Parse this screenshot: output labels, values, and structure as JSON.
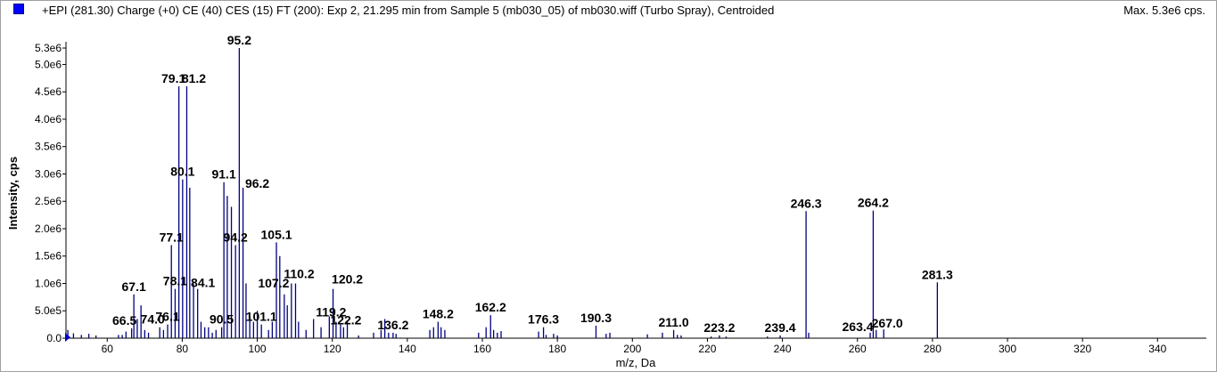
{
  "header": {
    "title": "+EPI (281.30) Charge (+0) CE (40) CES (15) FT (200): Exp 2, 21.295 min from Sample 5 (mb030_05) of mb030.wiff (Turbo Spray), Centroided",
    "max_label": "Max. 5.3e6 cps."
  },
  "colors": {
    "accent": "#000080",
    "swatch": "#0000ff"
  },
  "chart_data": {
    "type": "bar",
    "title": "+EPI (281.30) Charge (+0) CE (40) CES (15) FT (200): Exp 2, 21.295 min from Sample 5 (mb030_05) of mb030.wiff (Turbo Spray), Centroided",
    "xlabel": "m/z, Da",
    "ylabel": "Intensity, cps",
    "xlim": [
      49,
      353
    ],
    "ylim": [
      0,
      5300000.0
    ],
    "x_ticks": [
      60,
      80,
      100,
      120,
      140,
      160,
      180,
      200,
      220,
      240,
      260,
      280,
      300,
      320,
      340
    ],
    "y_ticks": [
      {
        "v": 0,
        "t": "0.0"
      },
      {
        "v": 500000,
        "t": "5.0e5"
      },
      {
        "v": 1000000,
        "t": "1.0e6"
      },
      {
        "v": 1500000,
        "t": "1.5e6"
      },
      {
        "v": 2000000,
        "t": "2.0e6"
      },
      {
        "v": 2500000,
        "t": "2.5e6"
      },
      {
        "v": 3000000,
        "t": "3.0e6"
      },
      {
        "v": 3500000,
        "t": "3.5e6"
      },
      {
        "v": 4000000,
        "t": "4.0e6"
      },
      {
        "v": 4500000,
        "t": "4.5e6"
      },
      {
        "v": 5000000,
        "t": "5.0e6"
      },
      {
        "v": 5300000,
        "t": "5.3e6"
      }
    ],
    "grid": false,
    "peaks": [
      {
        "x": 49.5,
        "y": 150000
      },
      {
        "x": 51.0,
        "y": 90000
      },
      {
        "x": 53.1,
        "y": 60000
      },
      {
        "x": 55.1,
        "y": 80000
      },
      {
        "x": 57.0,
        "y": 50000
      },
      {
        "x": 63.0,
        "y": 60000
      },
      {
        "x": 64.0,
        "y": 60000
      },
      {
        "x": 65.0,
        "y": 120000
      },
      {
        "x": 66.5,
        "y": 180000
      },
      {
        "x": 67.1,
        "y": 800000
      },
      {
        "x": 68.0,
        "y": 350000
      },
      {
        "x": 69.0,
        "y": 600000
      },
      {
        "x": 70.0,
        "y": 150000
      },
      {
        "x": 71.0,
        "y": 100000
      },
      {
        "x": 74.0,
        "y": 200000
      },
      {
        "x": 75.0,
        "y": 150000
      },
      {
        "x": 76.1,
        "y": 250000
      },
      {
        "x": 77.1,
        "y": 1700000
      },
      {
        "x": 78.1,
        "y": 900000
      },
      {
        "x": 79.1,
        "y": 4600000
      },
      {
        "x": 80.1,
        "y": 2900000
      },
      {
        "x": 81.2,
        "y": 4600000
      },
      {
        "x": 82.0,
        "y": 2750000
      },
      {
        "x": 83.0,
        "y": 1000000
      },
      {
        "x": 84.1,
        "y": 900000
      },
      {
        "x": 85.0,
        "y": 300000
      },
      {
        "x": 86.0,
        "y": 200000
      },
      {
        "x": 87.0,
        "y": 200000
      },
      {
        "x": 88.0,
        "y": 100000
      },
      {
        "x": 89.0,
        "y": 150000
      },
      {
        "x": 90.5,
        "y": 200000
      },
      {
        "x": 91.1,
        "y": 2850000
      },
      {
        "x": 92.0,
        "y": 2600000
      },
      {
        "x": 93.1,
        "y": 2400000
      },
      {
        "x": 94.2,
        "y": 1700000
      },
      {
        "x": 95.2,
        "y": 5300000
      },
      {
        "x": 96.2,
        "y": 2750000
      },
      {
        "x": 97.0,
        "y": 1000000
      },
      {
        "x": 98.0,
        "y": 400000
      },
      {
        "x": 99.0,
        "y": 300000
      },
      {
        "x": 100.0,
        "y": 500000
      },
      {
        "x": 101.1,
        "y": 250000
      },
      {
        "x": 103.0,
        "y": 150000
      },
      {
        "x": 104.0,
        "y": 300000
      },
      {
        "x": 105.1,
        "y": 1750000
      },
      {
        "x": 106.0,
        "y": 1500000
      },
      {
        "x": 107.2,
        "y": 800000
      },
      {
        "x": 108.0,
        "y": 600000
      },
      {
        "x": 109.1,
        "y": 1000000
      },
      {
        "x": 110.2,
        "y": 1000000
      },
      {
        "x": 111.0,
        "y": 300000
      },
      {
        "x": 113.0,
        "y": 150000
      },
      {
        "x": 115.0,
        "y": 350000
      },
      {
        "x": 117.0,
        "y": 200000
      },
      {
        "x": 119.2,
        "y": 400000
      },
      {
        "x": 120.2,
        "y": 900000
      },
      {
        "x": 121.0,
        "y": 300000
      },
      {
        "x": 122.2,
        "y": 250000
      },
      {
        "x": 123.0,
        "y": 200000
      },
      {
        "x": 124.0,
        "y": 300000
      },
      {
        "x": 127.0,
        "y": 50000
      },
      {
        "x": 131.0,
        "y": 100000
      },
      {
        "x": 133.0,
        "y": 150000
      },
      {
        "x": 134.0,
        "y": 350000
      },
      {
        "x": 135.0,
        "y": 100000
      },
      {
        "x": 136.2,
        "y": 100000
      },
      {
        "x": 137.0,
        "y": 80000
      },
      {
        "x": 146.0,
        "y": 150000
      },
      {
        "x": 147.0,
        "y": 200000
      },
      {
        "x": 148.2,
        "y": 300000
      },
      {
        "x": 149.0,
        "y": 200000
      },
      {
        "x": 150.0,
        "y": 150000
      },
      {
        "x": 159.0,
        "y": 100000
      },
      {
        "x": 161.0,
        "y": 200000
      },
      {
        "x": 162.2,
        "y": 420000
      },
      {
        "x": 163.0,
        "y": 150000
      },
      {
        "x": 164.0,
        "y": 100000
      },
      {
        "x": 165.0,
        "y": 130000
      },
      {
        "x": 175.0,
        "y": 120000
      },
      {
        "x": 176.3,
        "y": 200000
      },
      {
        "x": 177.0,
        "y": 60000
      },
      {
        "x": 179.0,
        "y": 80000
      },
      {
        "x": 180.0,
        "y": 50000
      },
      {
        "x": 190.3,
        "y": 230000
      },
      {
        "x": 193.0,
        "y": 80000
      },
      {
        "x": 194.0,
        "y": 100000
      },
      {
        "x": 204.0,
        "y": 70000
      },
      {
        "x": 208.0,
        "y": 100000
      },
      {
        "x": 211.0,
        "y": 150000
      },
      {
        "x": 212.0,
        "y": 60000
      },
      {
        "x": 213.0,
        "y": 50000
      },
      {
        "x": 221.0,
        "y": 30000
      },
      {
        "x": 223.2,
        "y": 50000
      },
      {
        "x": 225.0,
        "y": 30000
      },
      {
        "x": 236.0,
        "y": 30000
      },
      {
        "x": 239.4,
        "y": 50000
      },
      {
        "x": 246.3,
        "y": 2320000
      },
      {
        "x": 247.0,
        "y": 100000
      },
      {
        "x": 263.4,
        "y": 100000
      },
      {
        "x": 264.2,
        "y": 2330000
      },
      {
        "x": 265.0,
        "y": 150000
      },
      {
        "x": 267.0,
        "y": 160000
      },
      {
        "x": 281.3,
        "y": 1020000
      }
    ],
    "annotations": [
      {
        "x": 67.1,
        "y": 800000,
        "label": "67.1"
      },
      {
        "x": 66.5,
        "y": 180000,
        "label": "66.5"
      },
      {
        "x": 74.0,
        "y": 200000,
        "label": "74.0"
      },
      {
        "x": 76.1,
        "y": 250000,
        "label": "76.1"
      },
      {
        "x": 77.1,
        "y": 1700000,
        "label": "77.1"
      },
      {
        "x": 78.1,
        "y": 900000,
        "label": "78.1"
      },
      {
        "x": 79.1,
        "y": 4600000,
        "label": "79.1"
      },
      {
        "x": 80.1,
        "y": 2900000,
        "label": "80.1"
      },
      {
        "x": 81.2,
        "y": 4600000,
        "label": "81.2"
      },
      {
        "x": 84.1,
        "y": 900000,
        "label": "84.1"
      },
      {
        "x": 90.5,
        "y": 200000,
        "label": "90.5"
      },
      {
        "x": 91.1,
        "y": 2850000,
        "label": "91.1"
      },
      {
        "x": 94.2,
        "y": 1700000,
        "label": "94.2"
      },
      {
        "x": 95.2,
        "y": 5300000,
        "label": "95.2"
      },
      {
        "x": 96.2,
        "y": 2750000,
        "label": "96.2"
      },
      {
        "x": 101.1,
        "y": 250000,
        "label": "101.1"
      },
      {
        "x": 105.1,
        "y": 1750000,
        "label": "105.1"
      },
      {
        "x": 107.2,
        "y": 800000,
        "label": "107.2"
      },
      {
        "x": 110.2,
        "y": 1000000,
        "label": "110.2"
      },
      {
        "x": 119.2,
        "y": 400000,
        "label": "119.2"
      },
      {
        "x": 120.2,
        "y": 900000,
        "label": "120.2"
      },
      {
        "x": 122.2,
        "y": 250000,
        "label": "122.2"
      },
      {
        "x": 136.2,
        "y": 100000,
        "label": "136.2"
      },
      {
        "x": 148.2,
        "y": 300000,
        "label": "148.2"
      },
      {
        "x": 162.2,
        "y": 420000,
        "label": "162.2"
      },
      {
        "x": 176.3,
        "y": 200000,
        "label": "176.3"
      },
      {
        "x": 190.3,
        "y": 230000,
        "label": "190.3"
      },
      {
        "x": 211.0,
        "y": 150000,
        "label": "211.0"
      },
      {
        "x": 223.2,
        "y": 50000,
        "label": "223.2"
      },
      {
        "x": 239.4,
        "y": 50000,
        "label": "239.4"
      },
      {
        "x": 246.3,
        "y": 2320000,
        "label": "246.3"
      },
      {
        "x": 263.4,
        "y": 100000,
        "label": "263.4"
      },
      {
        "x": 264.2,
        "y": 2330000,
        "label": "264.2"
      },
      {
        "x": 267.0,
        "y": 160000,
        "label": "267.0"
      },
      {
        "x": 281.3,
        "y": 1020000,
        "label": "281.3"
      }
    ]
  }
}
